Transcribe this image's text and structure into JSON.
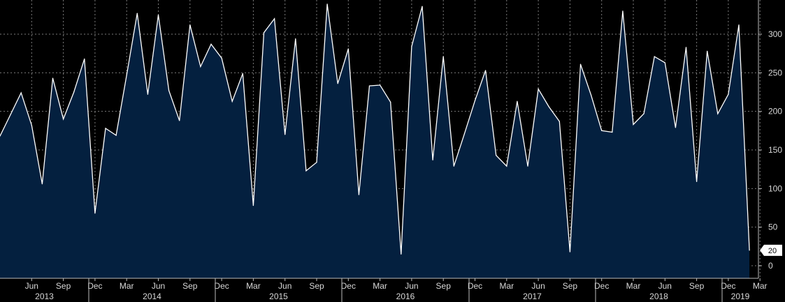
{
  "chart_data": {
    "type": "area",
    "title": "",
    "xlabel": "",
    "ylabel": "",
    "ylim": [
      -20,
      345
    ],
    "y_ticks": [
      0,
      50,
      100,
      150,
      200,
      250,
      300
    ],
    "grid": true,
    "colors": {
      "fill": "#04203f",
      "line": "#ffffff",
      "background": "#000000",
      "grid": "#7a7a7a"
    },
    "month_ticks": [
      {
        "label": "Jun",
        "x": "2013-06"
      },
      {
        "label": "Sep",
        "x": "2013-09"
      },
      {
        "label": "Dec",
        "x": "2013-12"
      },
      {
        "label": "Mar",
        "x": "2014-03"
      },
      {
        "label": "Jun",
        "x": "2014-06"
      },
      {
        "label": "Sep",
        "x": "2014-09"
      },
      {
        "label": "Dec",
        "x": "2014-12"
      },
      {
        "label": "Mar",
        "x": "2015-03"
      },
      {
        "label": "Jun",
        "x": "2015-06"
      },
      {
        "label": "Sep",
        "x": "2015-09"
      },
      {
        "label": "Dec",
        "x": "2015-12"
      },
      {
        "label": "Mar",
        "x": "2016-03"
      },
      {
        "label": "Jun",
        "x": "2016-06"
      },
      {
        "label": "Sep",
        "x": "2016-09"
      },
      {
        "label": "Dec",
        "x": "2016-12"
      },
      {
        "label": "Mar",
        "x": "2017-03"
      },
      {
        "label": "Jun",
        "x": "2017-06"
      },
      {
        "label": "Sep",
        "x": "2017-09"
      },
      {
        "label": "Dec",
        "x": "2017-12"
      },
      {
        "label": "Mar",
        "x": "2018-03"
      },
      {
        "label": "Jun",
        "x": "2018-06"
      },
      {
        "label": "Sep",
        "x": "2018-09"
      },
      {
        "label": "Dec",
        "x": "2018-12"
      },
      {
        "label": "Mar",
        "x": "2019-03"
      }
    ],
    "year_labels": [
      "2013",
      "2014",
      "2015",
      "2016",
      "2017",
      "2018",
      "2019"
    ],
    "last_value_label": "20",
    "x": [
      "2013-03",
      "2013-04",
      "2013-05",
      "2013-06",
      "2013-07",
      "2013-08",
      "2013-09",
      "2013-10",
      "2013-11",
      "2013-12",
      "2014-01",
      "2014-02",
      "2014-03",
      "2014-04",
      "2014-05",
      "2014-06",
      "2014-07",
      "2014-08",
      "2014-09",
      "2014-10",
      "2014-11",
      "2014-12",
      "2015-01",
      "2015-02",
      "2015-03",
      "2015-04",
      "2015-05",
      "2015-06",
      "2015-07",
      "2015-08",
      "2015-09",
      "2015-10",
      "2015-11",
      "2015-12",
      "2016-01",
      "2016-02",
      "2016-03",
      "2016-04",
      "2016-05",
      "2016-06",
      "2016-07",
      "2016-08",
      "2016-09",
      "2016-10",
      "2016-11",
      "2016-12",
      "2017-01",
      "2017-02",
      "2017-03",
      "2017-04",
      "2017-05",
      "2017-06",
      "2017-07",
      "2017-08",
      "2017-09",
      "2017-10",
      "2017-11",
      "2017-12",
      "2018-01",
      "2018-02",
      "2018-03",
      "2018-04",
      "2018-05",
      "2018-06",
      "2018-07",
      "2018-08",
      "2018-09",
      "2018-10",
      "2018-11",
      "2018-12",
      "2019-01",
      "2019-02"
    ],
    "series": [
      {
        "values": [
          168,
          196,
          224,
          182,
          106,
          243,
          190,
          225,
          268,
          68,
          178,
          169,
          247,
          327,
          222,
          325,
          227,
          188,
          312,
          258,
          287,
          269,
          213,
          249,
          78,
          302,
          320,
          170,
          294,
          123,
          134,
          339,
          236,
          281,
          92,
          233,
          234,
          212,
          15,
          284,
          336,
          137,
          271,
          129,
          171,
          214,
          253,
          143,
          129,
          213,
          129,
          229,
          206,
          187,
          18,
          261,
          221,
          175,
          173,
          330,
          183,
          197,
          271,
          263,
          179,
          283,
          109,
          278,
          197,
          222,
          312,
          20
        ]
      }
    ]
  }
}
